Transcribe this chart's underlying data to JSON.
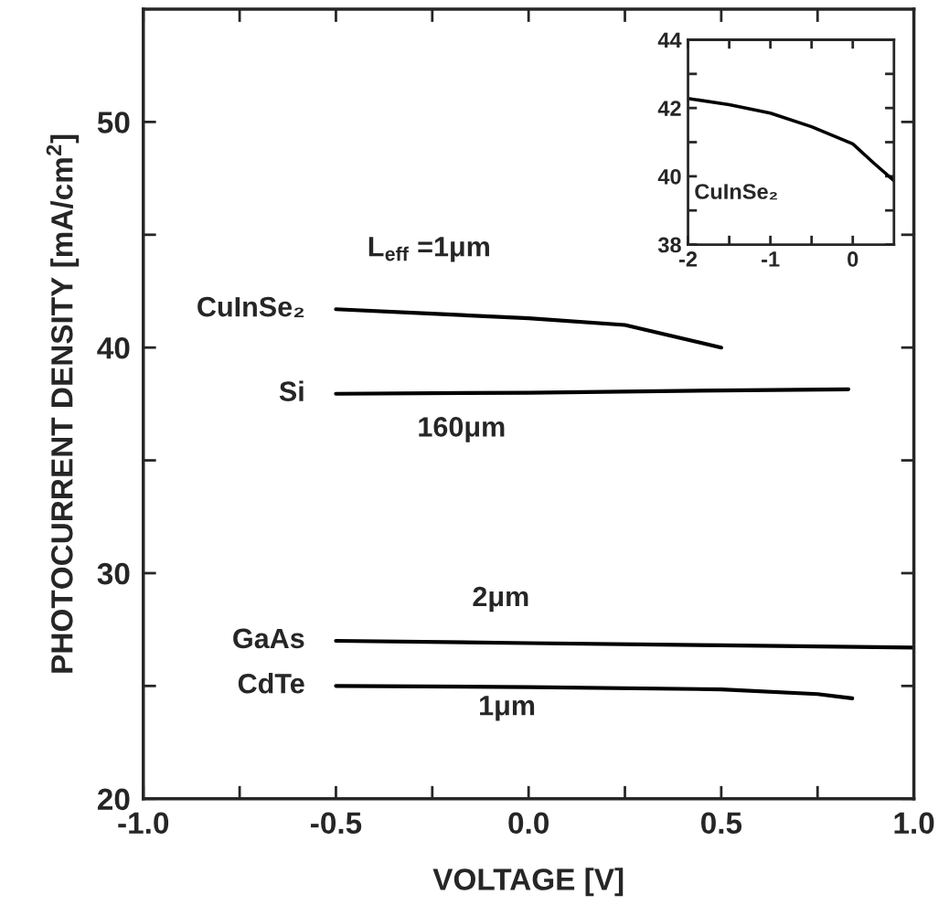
{
  "chart_data": [
    {
      "type": "line",
      "xlabel": "VOLTAGE [V]",
      "ylabel": "PHOTOCURRENT DENSITY [mA/cm$^{2}$]",
      "xlim": [
        -1.0,
        1.0
      ],
      "ylim": [
        20,
        55
      ],
      "xticks": [
        {
          "value": -1,
          "label": "-1.0"
        },
        {
          "value": -0.75,
          "label": null
        },
        -0.5,
        {
          "value": -0.25,
          "label": null
        },
        {
          "value": 0,
          "label": "0.0"
        },
        {
          "value": 0.25,
          "label": null
        },
        0.5,
        {
          "value": 0.75,
          "label": null
        },
        {
          "value": 1,
          "label": "1.0"
        }
      ],
      "yticks": [
        20,
        {
          "value": 25,
          "label": null
        },
        30,
        {
          "value": 35,
          "label": null
        },
        40,
        {
          "value": 45,
          "label": null
        },
        50
      ],
      "grid": false,
      "legend": false,
      "marker": "none",
      "line_style": "solid",
      "series": [
        {
          "name": "CuInSe₂",
          "color": "#000000",
          "x": [
            -0.5,
            -0.25,
            0.0,
            0.25,
            0.5
          ],
          "values": [
            41.7,
            41.5,
            41.3,
            41.0,
            40.0
          ]
        },
        {
          "name": "Si",
          "color": "#000000",
          "x": [
            -0.5,
            0.0,
            0.5,
            0.83
          ],
          "values": [
            37.95,
            38.0,
            38.1,
            38.15
          ]
        },
        {
          "name": "GaAs",
          "color": "#000000",
          "x": [
            -0.5,
            0.0,
            0.5,
            1.0
          ],
          "values": [
            27.0,
            26.9,
            26.8,
            26.7
          ]
        },
        {
          "name": "CdTe",
          "color": "#000000",
          "x": [
            -0.5,
            0.0,
            0.5,
            0.75,
            0.84
          ],
          "values": [
            25.0,
            24.95,
            24.85,
            24.64,
            24.45
          ]
        }
      ],
      "annotations": [
        "L$_{eff}$ =1μm",
        "160μm",
        "2μm",
        "1μm"
      ]
    },
    {
      "type": "line",
      "xlim": [
        -2,
        0.5
      ],
      "ylim": [
        38,
        44
      ],
      "xticks": [
        -2,
        {
          "value": -1.5,
          "label": null
        },
        -1,
        {
          "value": -0.5,
          "label": null
        },
        0
      ],
      "yticks": [
        38,
        {
          "value": 39,
          "label": null
        },
        40,
        {
          "value": 41,
          "label": null
        },
        42,
        {
          "value": 43,
          "label": null
        },
        44
      ],
      "grid": false,
      "legend": false,
      "marker": "none",
      "line_style": "solid",
      "series": [
        {
          "color": "#000000",
          "x": [
            -2,
            -1.5,
            -1,
            -0.5,
            0,
            0.25,
            0.5
          ],
          "values": [
            42.28,
            42.1,
            41.85,
            41.45,
            40.95,
            40.4,
            39.87
          ]
        }
      ],
      "annotations": [
        "CuInSe₂"
      ]
    }
  ]
}
